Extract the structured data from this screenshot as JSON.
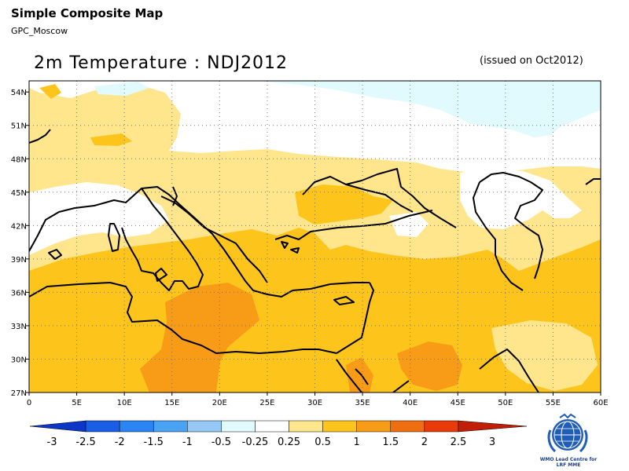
{
  "header": {
    "app_title": "Simple Composite Map",
    "subtitle": "GPC_Moscow",
    "map_title": "2m Temperature : NDJ2012",
    "issued": "(issued on Oct2012)"
  },
  "map": {
    "lat_ticks": [
      "54N",
      "51N",
      "48N",
      "45N",
      "42N",
      "39N",
      "36N",
      "33N",
      "30N",
      "27N"
    ],
    "lon_ticks": [
      "0",
      "5E",
      "10E",
      "15E",
      "20E",
      "25E",
      "30E",
      "35E",
      "40E",
      "45E",
      "50E",
      "55E",
      "60E"
    ],
    "lon_range": [
      0,
      60
    ],
    "lat_range": [
      27,
      55
    ],
    "grid": "dotted"
  },
  "legend": {
    "labels": [
      "-3",
      "-2.5",
      "-2",
      "-1.5",
      "-1",
      "-0.5",
      "-0.25",
      "0.25",
      "0.5",
      "1",
      "1.5",
      "2",
      "2.5",
      "3"
    ],
    "colors": [
      "#0a37c8",
      "#1b5ee6",
      "#2a84f2",
      "#4aa3f2",
      "#96c8f5",
      "#e0fafe",
      "#ffffff",
      "#ffe68c",
      "#fdc51c",
      "#f89b16",
      "#f06e12",
      "#e83a0a",
      "#c21e06"
    ]
  },
  "logo": {
    "line1": "WMO Lead Centre for",
    "line2": "LRF MME"
  }
}
